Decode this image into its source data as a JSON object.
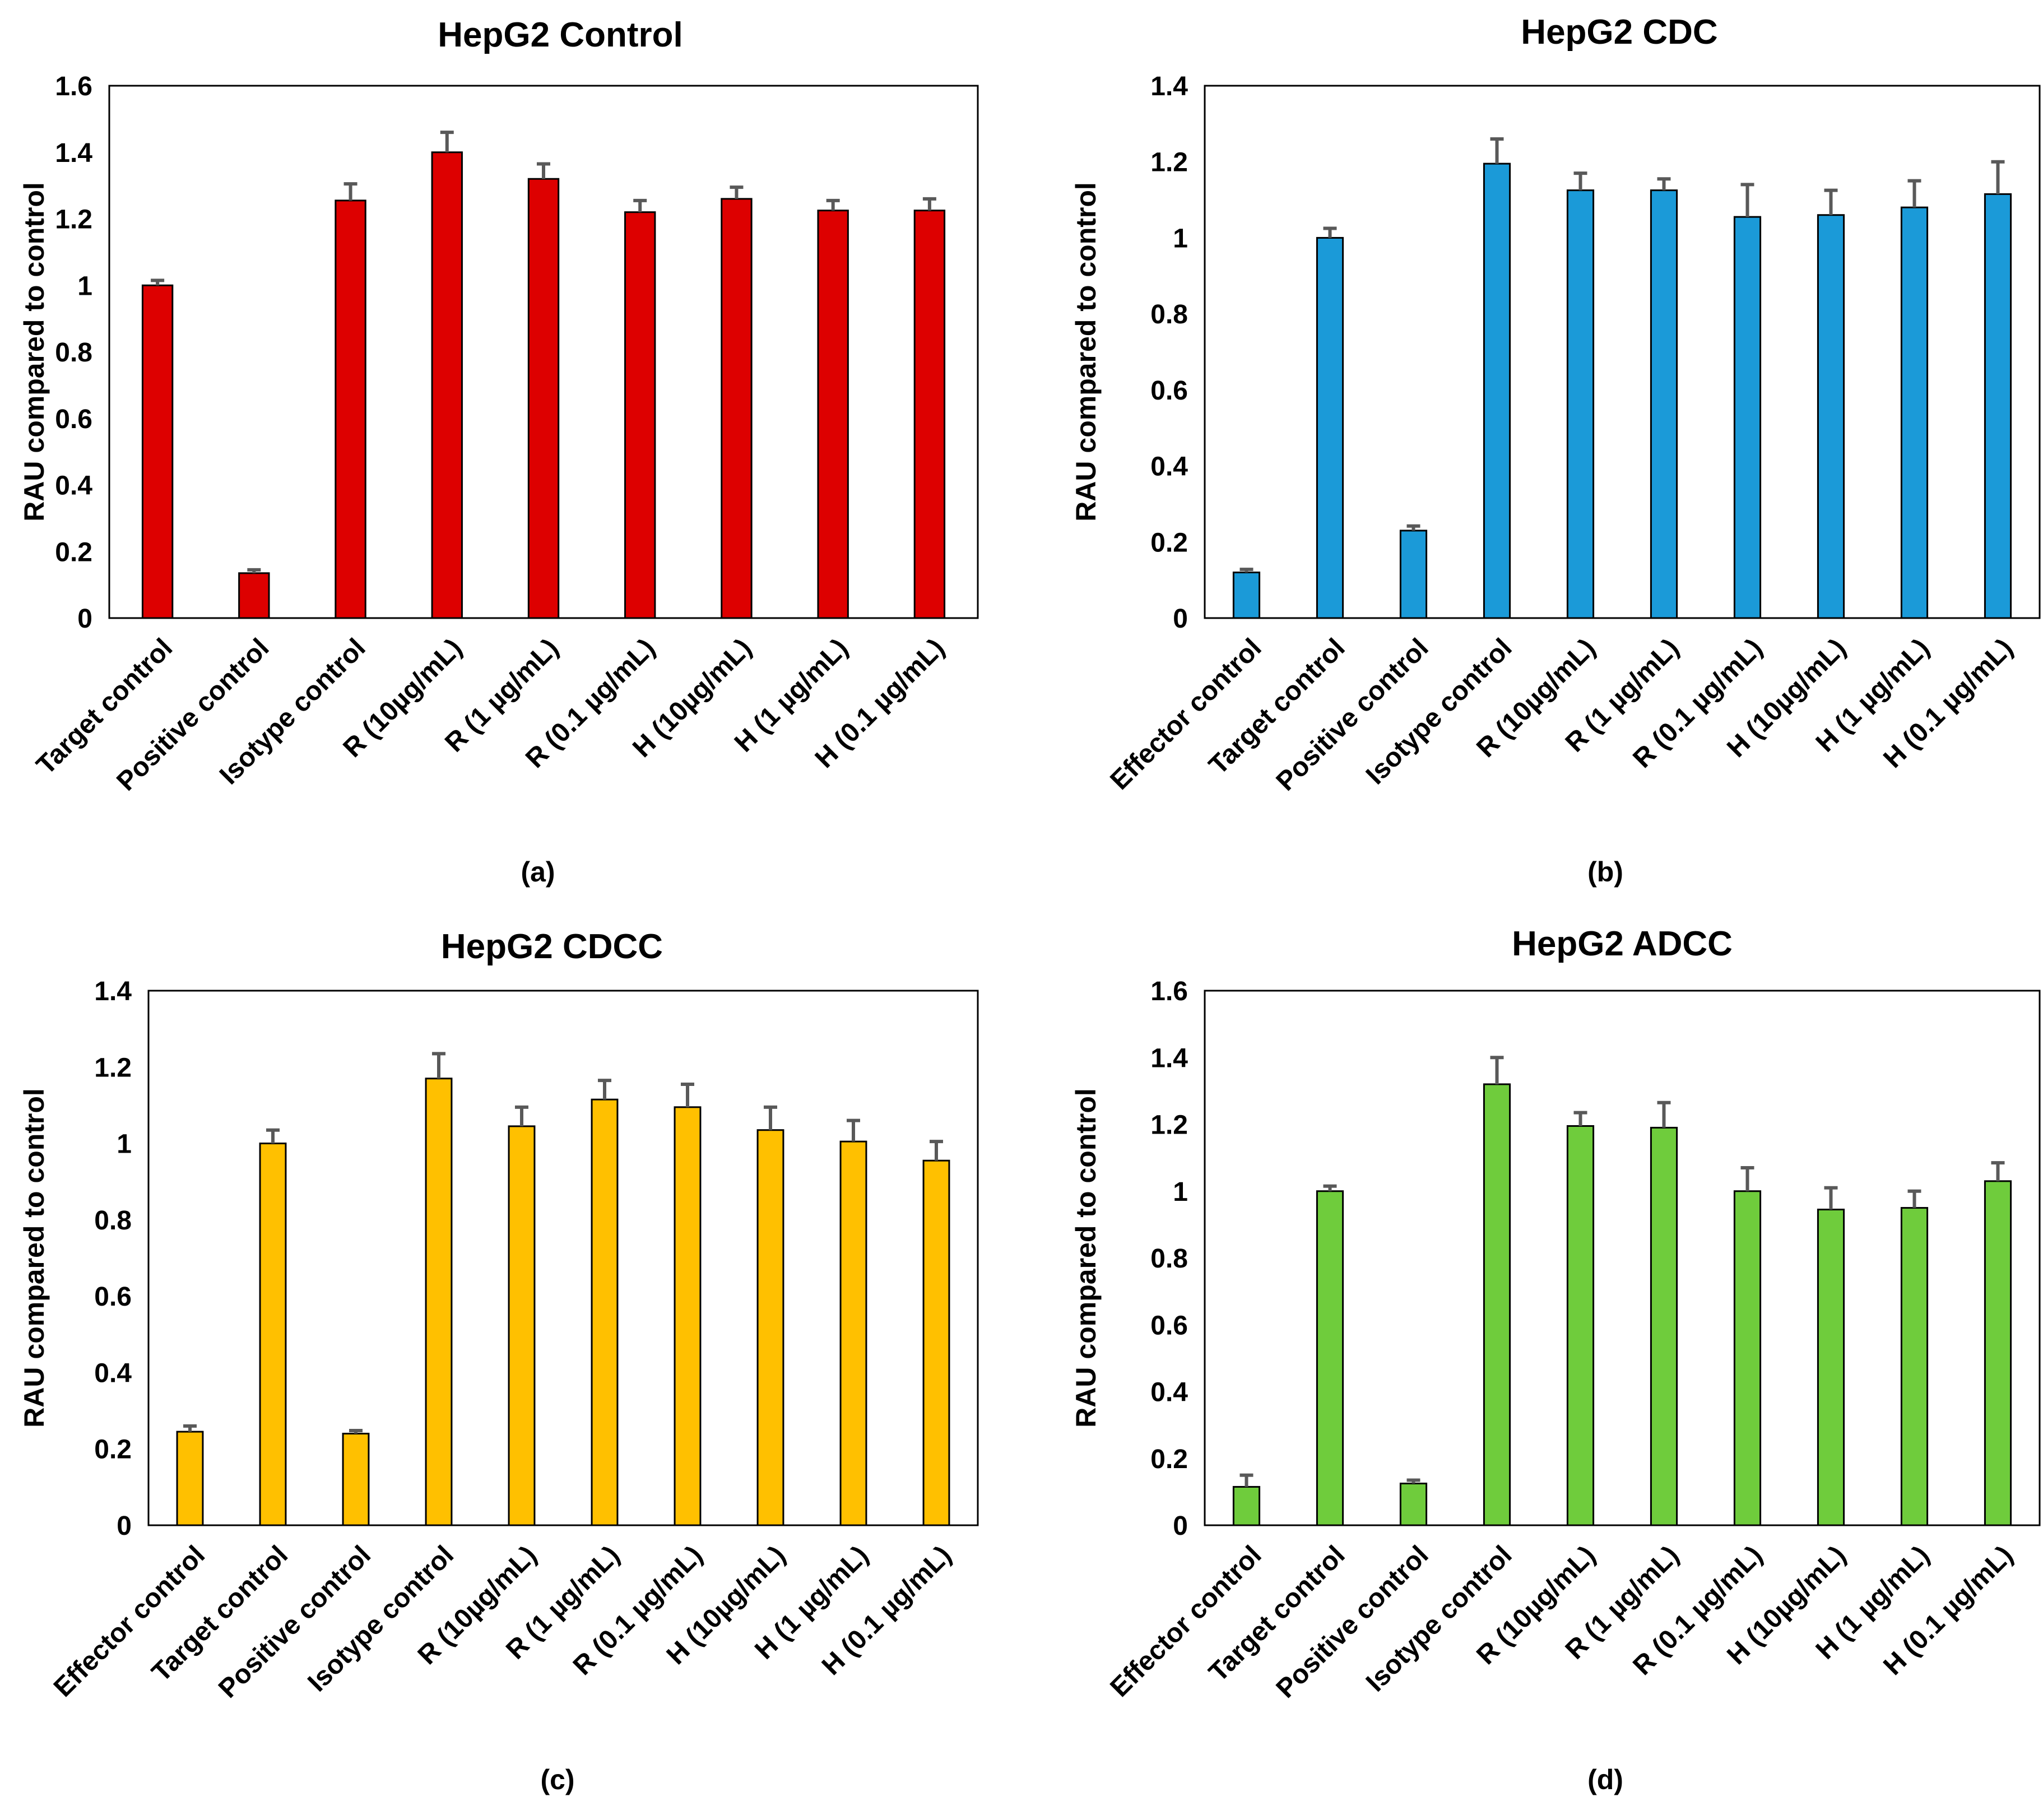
{
  "chart_data": [
    {
      "panel": "(a)",
      "type": "bar",
      "title": "HepG2 Control",
      "ylabel": "RAU compared to control",
      "xlabel": "",
      "ylim": [
        0,
        1.6
      ],
      "yticks": [
        "0",
        "0.2",
        "0.4",
        "0.6",
        "0.8",
        "1",
        "1.2",
        "1.4",
        "1.6"
      ],
      "grid": false,
      "color": "#DD0000",
      "categories": [
        "Target control",
        "Positive control",
        "Isotype control",
        "R (10µg/mL)",
        "R (1 µg/mL)",
        "R (0.1 µg/mL)",
        "H (10µg/mL)",
        "H (1 µg/mL)",
        "H (0.1 µg/mL)"
      ],
      "values": [
        1.0,
        0.135,
        1.255,
        1.4,
        1.32,
        1.22,
        1.26,
        1.225,
        1.225
      ],
      "errors": [
        0.015,
        0.01,
        0.05,
        0.06,
        0.045,
        0.035,
        0.035,
        0.03,
        0.035
      ]
    },
    {
      "panel": "(b)",
      "type": "bar",
      "title": "HepG2 CDC",
      "ylabel": "RAU compared to control",
      "xlabel": "",
      "ylim": [
        0,
        1.4
      ],
      "yticks": [
        "0",
        "0.2",
        "0.4",
        "0.6",
        "0.8",
        "1",
        "1.2",
        "1.4"
      ],
      "grid": false,
      "color": "#1B9AD8",
      "categories": [
        "Effector control",
        "Target control",
        "Positive control",
        "Isotype control",
        "R (10µg/mL)",
        "R (1 µg/mL)",
        "R (0.1 µg/mL)",
        "H (10µg/mL)",
        "H (1 µg/mL)",
        "H (0.1 µg/mL)"
      ],
      "values": [
        0.12,
        1.0,
        0.23,
        1.195,
        1.125,
        1.125,
        1.055,
        1.06,
        1.08,
        1.115
      ],
      "errors": [
        0.008,
        0.025,
        0.012,
        0.065,
        0.045,
        0.03,
        0.085,
        0.065,
        0.07,
        0.085
      ]
    },
    {
      "panel": "(c)",
      "type": "bar",
      "title": "HepG2 CDCC",
      "ylabel": "RAU compared to control",
      "xlabel": "",
      "ylim": [
        0,
        1.4
      ],
      "yticks": [
        "0",
        "0.2",
        "0.4",
        "0.6",
        "0.8",
        "1",
        "1.2",
        "1.4"
      ],
      "grid": false,
      "color": "#FFC000",
      "categories": [
        "Effector control",
        "Target control",
        "Positive control",
        "Isotype control",
        "R (10µg/mL)",
        "R (1 µg/mL)",
        "R (0.1 µg/mL)",
        "H (10µg/mL)",
        "H (1 µg/mL)",
        "H (0.1 µg/mL)"
      ],
      "values": [
        0.245,
        1.0,
        0.24,
        1.17,
        1.045,
        1.115,
        1.095,
        1.035,
        1.005,
        0.955
      ],
      "errors": [
        0.015,
        0.035,
        0.008,
        0.065,
        0.05,
        0.05,
        0.06,
        0.06,
        0.055,
        0.05
      ]
    },
    {
      "panel": "(d)",
      "type": "bar",
      "title": "HepG2 ADCC",
      "ylabel": "RAU compared to control",
      "xlabel": "",
      "ylim": [
        0,
        1.6
      ],
      "yticks": [
        "0",
        "0.2",
        "0.4",
        "0.6",
        "0.8",
        "1",
        "1.2",
        "1.4",
        "1.6"
      ],
      "grid": false,
      "color": "#6FCC3C",
      "categories": [
        "Effector control",
        "Target control",
        "Positive control",
        "Isotype control",
        "R (10µg/mL)",
        "R (1 µg/mL)",
        "R (0.1 µg/mL)",
        "H (10µg/mL)",
        "H (1 µg/mL)",
        "H (0.1 µg/mL)"
      ],
      "values": [
        0.115,
        1.0,
        0.125,
        1.32,
        1.195,
        1.19,
        1.0,
        0.945,
        0.95,
        1.03
      ],
      "errors": [
        0.035,
        0.015,
        0.01,
        0.08,
        0.04,
        0.075,
        0.07,
        0.065,
        0.05,
        0.055
      ]
    }
  ]
}
